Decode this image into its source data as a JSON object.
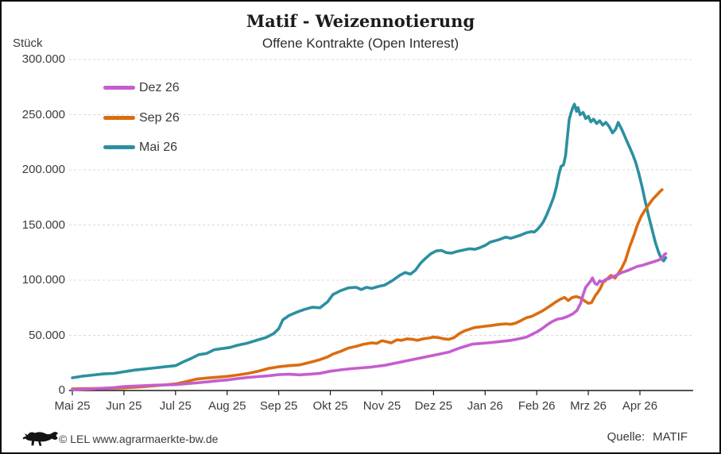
{
  "title": "Matif - Weizennotierung",
  "subtitle": "Offene Kontrakte (Open Interest)",
  "y_axis_unit_label": "Stück",
  "footer": {
    "copyright": "© LEL www.agrarmaerkte-bw.de",
    "source_label": "Quelle:",
    "source_value": "MATIF"
  },
  "colors": {
    "dez26": "#c45ecf",
    "sep26": "#db6c10",
    "mai26": "#2b90a0",
    "grid": "#d8d8d8",
    "axis": "#1a1a1a",
    "text": "#3a3a3a"
  },
  "chart_data": {
    "type": "line",
    "title": "Matif - Weizennotierung",
    "subtitle": "Offene Kontrakte (Open Interest)",
    "ylabel": "Stück",
    "xlabel": "",
    "ylim": [
      0,
      300000
    ],
    "grid": "horizontal-dashed",
    "legend_position": "top-left-inside",
    "x_unit": "decimal month index, 0 = Mai 25 … 11 = Apr 26",
    "x_tick_labels": [
      "Mai 25",
      "Jun 25",
      "Jul 25",
      "Aug 25",
      "Sep 25",
      "Okt 25",
      "Nov 25",
      "Dez 25",
      "Jan 26",
      "Feb 26",
      "Mrz 26",
      "Apr 26"
    ],
    "y_ticks": [
      {
        "value": 0,
        "label": "0"
      },
      {
        "value": 50000,
        "label": "50.000"
      },
      {
        "value": 100000,
        "label": "100.000"
      },
      {
        "value": 150000,
        "label": "150.000"
      },
      {
        "value": 200000,
        "label": "200.000"
      },
      {
        "value": 250000,
        "label": "250.000"
      },
      {
        "value": 300000,
        "label": "300.000"
      }
    ],
    "series": [
      {
        "name": "Dez 26",
        "color": "#c45ecf",
        "points": [
          [
            0,
            800
          ],
          [
            0.4,
            1500
          ],
          [
            0.8,
            2600
          ],
          [
            1.0,
            3600
          ],
          [
            1.3,
            4200
          ],
          [
            1.6,
            4800
          ],
          [
            1.8,
            5100
          ],
          [
            2.0,
            5300
          ],
          [
            2.3,
            6500
          ],
          [
            2.6,
            7800
          ],
          [
            2.8,
            8800
          ],
          [
            3.0,
            9600
          ],
          [
            3.2,
            10800
          ],
          [
            3.4,
            11800
          ],
          [
            3.6,
            12600
          ],
          [
            3.8,
            13400
          ],
          [
            4.0,
            14400
          ],
          [
            4.2,
            14800
          ],
          [
            4.4,
            14200
          ],
          [
            4.6,
            14800
          ],
          [
            4.8,
            15600
          ],
          [
            5.0,
            17500
          ],
          [
            5.2,
            18700
          ],
          [
            5.4,
            19800
          ],
          [
            5.6,
            20500
          ],
          [
            5.8,
            21300
          ],
          [
            6.05,
            22800
          ],
          [
            6.3,
            25200
          ],
          [
            6.55,
            27600
          ],
          [
            6.8,
            30000
          ],
          [
            7.05,
            32400
          ],
          [
            7.3,
            34800
          ],
          [
            7.5,
            38400
          ],
          [
            7.75,
            42000
          ],
          [
            8.05,
            43200
          ],
          [
            8.3,
            44400
          ],
          [
            8.5,
            45500
          ],
          [
            8.65,
            46800
          ],
          [
            8.8,
            48400
          ],
          [
            9.0,
            53000
          ],
          [
            9.1,
            56000
          ],
          [
            9.2,
            59500
          ],
          [
            9.3,
            62500
          ],
          [
            9.4,
            64700
          ],
          [
            9.5,
            65500
          ],
          [
            9.6,
            67100
          ],
          [
            9.7,
            69500
          ],
          [
            9.78,
            72500
          ],
          [
            9.85,
            79000
          ],
          [
            9.9,
            87000
          ],
          [
            9.95,
            93500
          ],
          [
            10.0,
            96500
          ],
          [
            10.05,
            99500
          ],
          [
            10.08,
            102000
          ],
          [
            10.13,
            97000
          ],
          [
            10.17,
            96000
          ],
          [
            10.22,
            99500
          ],
          [
            10.27,
            98300
          ],
          [
            10.33,
            100500
          ],
          [
            10.4,
            101500
          ],
          [
            10.47,
            103000
          ],
          [
            10.55,
            104500
          ],
          [
            10.65,
            107000
          ],
          [
            10.75,
            108500
          ],
          [
            10.85,
            110500
          ],
          [
            10.95,
            112500
          ],
          [
            11.05,
            113500
          ],
          [
            11.15,
            115000
          ],
          [
            11.25,
            116500
          ],
          [
            11.35,
            118000
          ],
          [
            11.42,
            119500
          ],
          [
            11.47,
            123000
          ],
          [
            11.5,
            124000
          ]
        ]
      },
      {
        "name": "Sep 26",
        "color": "#db6c10",
        "points": [
          [
            0,
            1500
          ],
          [
            0.4,
            1800
          ],
          [
            0.8,
            2100
          ],
          [
            1.0,
            2400
          ],
          [
            1.3,
            3200
          ],
          [
            1.6,
            4300
          ],
          [
            1.85,
            5300
          ],
          [
            2.0,
            6000
          ],
          [
            2.2,
            8000
          ],
          [
            2.4,
            10300
          ],
          [
            2.6,
            11300
          ],
          [
            2.8,
            12000
          ],
          [
            3.0,
            12800
          ],
          [
            3.2,
            14000
          ],
          [
            3.4,
            15500
          ],
          [
            3.6,
            17500
          ],
          [
            3.8,
            20000
          ],
          [
            4.0,
            21500
          ],
          [
            4.2,
            22500
          ],
          [
            4.4,
            23200
          ],
          [
            4.6,
            25500
          ],
          [
            4.8,
            28000
          ],
          [
            4.95,
            30500
          ],
          [
            5.05,
            33000
          ],
          [
            5.2,
            35500
          ],
          [
            5.35,
            38500
          ],
          [
            5.5,
            40000
          ],
          [
            5.65,
            42000
          ],
          [
            5.8,
            43200
          ],
          [
            5.9,
            42700
          ],
          [
            6.0,
            45100
          ],
          [
            6.07,
            44400
          ],
          [
            6.18,
            43200
          ],
          [
            6.29,
            46000
          ],
          [
            6.38,
            45500
          ],
          [
            6.49,
            46800
          ],
          [
            6.6,
            46300
          ],
          [
            6.69,
            45500
          ],
          [
            6.8,
            46800
          ],
          [
            6.9,
            47500
          ],
          [
            7.0,
            48400
          ],
          [
            7.1,
            47900
          ],
          [
            7.2,
            46800
          ],
          [
            7.3,
            46300
          ],
          [
            7.4,
            48000
          ],
          [
            7.5,
            51600
          ],
          [
            7.6,
            54000
          ],
          [
            7.7,
            55600
          ],
          [
            7.8,
            57100
          ],
          [
            7.9,
            57600
          ],
          [
            8.0,
            58300
          ],
          [
            8.1,
            58800
          ],
          [
            8.2,
            59500
          ],
          [
            8.3,
            60000
          ],
          [
            8.4,
            60400
          ],
          [
            8.5,
            60000
          ],
          [
            8.6,
            61200
          ],
          [
            8.7,
            63500
          ],
          [
            8.8,
            66000
          ],
          [
            8.9,
            67100
          ],
          [
            9.0,
            69500
          ],
          [
            9.1,
            71900
          ],
          [
            9.26,
            76700
          ],
          [
            9.37,
            80300
          ],
          [
            9.46,
            82700
          ],
          [
            9.54,
            84400
          ],
          [
            9.61,
            81500
          ],
          [
            9.69,
            84400
          ],
          [
            9.77,
            85100
          ],
          [
            9.85,
            83900
          ],
          [
            9.92,
            81500
          ],
          [
            10.0,
            79100
          ],
          [
            10.06,
            79600
          ],
          [
            10.14,
            86300
          ],
          [
            10.18,
            88700
          ],
          [
            10.23,
            92300
          ],
          [
            10.29,
            98300
          ],
          [
            10.33,
            99500
          ],
          [
            10.38,
            101900
          ],
          [
            10.44,
            104300
          ],
          [
            10.52,
            101900
          ],
          [
            10.57,
            105500
          ],
          [
            10.64,
            110300
          ],
          [
            10.72,
            118000
          ],
          [
            10.8,
            130000
          ],
          [
            10.88,
            140000
          ],
          [
            10.95,
            150000
          ],
          [
            11.03,
            158300
          ],
          [
            11.11,
            164300
          ],
          [
            11.18,
            169100
          ],
          [
            11.26,
            174000
          ],
          [
            11.31,
            176300
          ],
          [
            11.38,
            179900
          ],
          [
            11.43,
            182000
          ]
        ]
      },
      {
        "name": "Mai 26",
        "color": "#2b90a0",
        "points": [
          [
            0,
            11500
          ],
          [
            0.2,
            13000
          ],
          [
            0.4,
            14000
          ],
          [
            0.6,
            15000
          ],
          [
            0.8,
            15500
          ],
          [
            1.0,
            17000
          ],
          [
            1.2,
            18500
          ],
          [
            1.4,
            19500
          ],
          [
            1.6,
            20500
          ],
          [
            1.8,
            21500
          ],
          [
            2.0,
            22500
          ],
          [
            2.15,
            26000
          ],
          [
            2.3,
            29000
          ],
          [
            2.45,
            32500
          ],
          [
            2.6,
            33500
          ],
          [
            2.75,
            37000
          ],
          [
            2.9,
            38000
          ],
          [
            3.05,
            39000
          ],
          [
            3.2,
            41000
          ],
          [
            3.4,
            43000
          ],
          [
            3.6,
            46000
          ],
          [
            3.75,
            48000
          ],
          [
            3.9,
            51500
          ],
          [
            4.0,
            56000
          ],
          [
            4.08,
            64000
          ],
          [
            4.2,
            68000
          ],
          [
            4.35,
            71000
          ],
          [
            4.5,
            73500
          ],
          [
            4.65,
            75500
          ],
          [
            4.8,
            75000
          ],
          [
            4.95,
            80500
          ],
          [
            5.05,
            87000
          ],
          [
            5.2,
            90500
          ],
          [
            5.35,
            93000
          ],
          [
            5.5,
            93500
          ],
          [
            5.6,
            91500
          ],
          [
            5.7,
            93500
          ],
          [
            5.8,
            92500
          ],
          [
            5.95,
            94500
          ],
          [
            6.05,
            95500
          ],
          [
            6.2,
            99500
          ],
          [
            6.35,
            104500
          ],
          [
            6.45,
            107000
          ],
          [
            6.55,
            105500
          ],
          [
            6.65,
            109000
          ],
          [
            6.75,
            115500
          ],
          [
            6.85,
            120000
          ],
          [
            6.95,
            124000
          ],
          [
            7.05,
            126500
          ],
          [
            7.15,
            127000
          ],
          [
            7.25,
            125000
          ],
          [
            7.35,
            124500
          ],
          [
            7.45,
            126000
          ],
          [
            7.6,
            127500
          ],
          [
            7.7,
            128500
          ],
          [
            7.8,
            128000
          ],
          [
            7.9,
            129500
          ],
          [
            8.0,
            131500
          ],
          [
            8.1,
            134500
          ],
          [
            8.25,
            136500
          ],
          [
            8.4,
            139000
          ],
          [
            8.5,
            138000
          ],
          [
            8.6,
            139500
          ],
          [
            8.7,
            141000
          ],
          [
            8.8,
            143000
          ],
          [
            8.9,
            144000
          ],
          [
            8.95,
            143500
          ],
          [
            9.0,
            145500
          ],
          [
            9.07,
            149000
          ],
          [
            9.13,
            153000
          ],
          [
            9.2,
            160000
          ],
          [
            9.27,
            168000
          ],
          [
            9.33,
            175500
          ],
          [
            9.38,
            184000
          ],
          [
            9.43,
            196000
          ],
          [
            9.47,
            203000
          ],
          [
            9.52,
            204500
          ],
          [
            9.56,
            213000
          ],
          [
            9.6,
            232000
          ],
          [
            9.63,
            246000
          ],
          [
            9.67,
            252500
          ],
          [
            9.7,
            256500
          ],
          [
            9.73,
            259500
          ],
          [
            9.77,
            253000
          ],
          [
            9.8,
            256500
          ],
          [
            9.84,
            250000
          ],
          [
            9.9,
            252000
          ],
          [
            9.95,
            246500
          ],
          [
            10.0,
            248500
          ],
          [
            10.05,
            243500
          ],
          [
            10.1,
            246000
          ],
          [
            10.16,
            242000
          ],
          [
            10.22,
            244500
          ],
          [
            10.28,
            240500
          ],
          [
            10.34,
            243000
          ],
          [
            10.4,
            239500
          ],
          [
            10.47,
            233500
          ],
          [
            10.53,
            237000
          ],
          [
            10.58,
            243000
          ],
          [
            10.65,
            236500
          ],
          [
            10.72,
            229000
          ],
          [
            10.79,
            221500
          ],
          [
            10.86,
            214000
          ],
          [
            10.92,
            206500
          ],
          [
            10.98,
            196500
          ],
          [
            11.04,
            185000
          ],
          [
            11.1,
            172000
          ],
          [
            11.17,
            158000
          ],
          [
            11.24,
            145000
          ],
          [
            11.3,
            134000
          ],
          [
            11.36,
            125500
          ],
          [
            11.42,
            119000
          ],
          [
            11.46,
            117500
          ],
          [
            11.5,
            120500
          ]
        ]
      }
    ]
  }
}
